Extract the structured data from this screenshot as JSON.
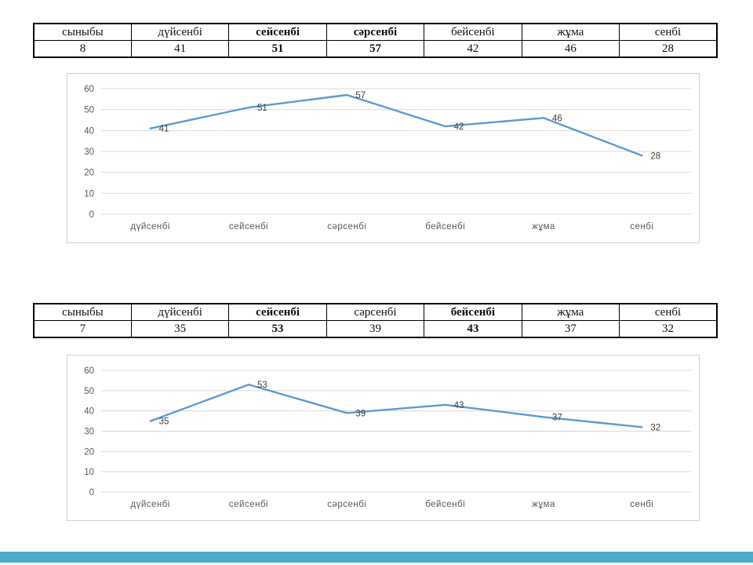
{
  "page": {
    "background": "#ffffff",
    "accent_bar_color": "#4BACC6"
  },
  "tables": [
    {
      "header": [
        "сыныбы",
        "дүйсенбі",
        "сейсенбі",
        "сәрсенбі",
        "бейсенбі",
        "жұма",
        "сенбі"
      ],
      "values": [
        "8",
        "41",
        "51",
        "57",
        "42",
        "46",
        "28"
      ],
      "bold_columns": [
        2,
        3
      ]
    },
    {
      "header": [
        "сыныбы",
        "дүйсенбі",
        "сейсенбі",
        "сәрсенбі",
        "бейсенбі",
        "жұма",
        "сенбі"
      ],
      "values": [
        "7",
        "35",
        "53",
        "39",
        "43",
        "37",
        "32"
      ],
      "bold_columns": [
        2,
        4
      ]
    }
  ],
  "chart_data": [
    {
      "type": "line",
      "categories": [
        "дүйсенбі",
        "сейсенбі",
        "сәрсенбі",
        "бейсенбі",
        "жұма",
        "сенбі"
      ],
      "values": [
        41,
        51,
        57,
        42,
        46,
        28
      ],
      "title": "",
      "xlabel": "",
      "ylabel": "",
      "ylim": [
        0,
        60
      ],
      "yticks": [
        0,
        10,
        20,
        30,
        40,
        50,
        60
      ],
      "grid": true,
      "legend": "none",
      "data_labels": true,
      "line_color": "#5B9BD5",
      "grid_color": "#d9d9d9",
      "tick_label_color": "#595959",
      "data_label_color": "#404040"
    },
    {
      "type": "line",
      "categories": [
        "дүйсенбі",
        "сейсенбі",
        "сәрсенбі",
        "бейсенбі",
        "жұма",
        "сенбі"
      ],
      "values": [
        35,
        53,
        39,
        43,
        37,
        32
      ],
      "title": "",
      "xlabel": "",
      "ylabel": "",
      "ylim": [
        0,
        60
      ],
      "yticks": [
        0,
        10,
        20,
        30,
        40,
        50,
        60
      ],
      "grid": true,
      "legend": "none",
      "data_labels": true,
      "line_color": "#5B9BD5",
      "grid_color": "#d9d9d9",
      "tick_label_color": "#595959",
      "data_label_color": "#404040"
    }
  ]
}
